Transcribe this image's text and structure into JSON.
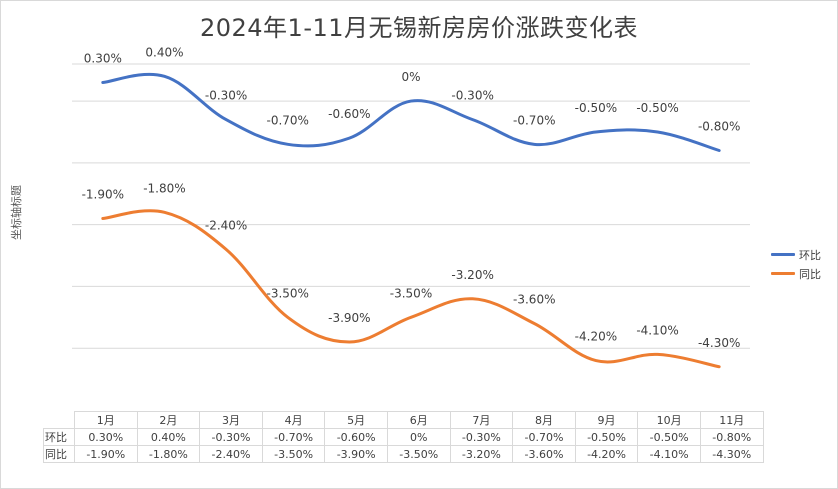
{
  "chart_data": {
    "type": "line",
    "title": "2024年1-11月无锡新房房价涨跌变化表",
    "ylabel": "坐标轴标题",
    "xlabel": "",
    "categories": [
      "1月",
      "2月",
      "3月",
      "4月",
      "5月",
      "6月",
      "7月",
      "8月",
      "9月",
      "10月",
      "11月"
    ],
    "ylim": [
      -5.0,
      0.6
    ],
    "grid": true,
    "legend_position": "right",
    "series": [
      {
        "name": "环比",
        "color": "#4472c4",
        "values": [
          0.3,
          0.4,
          -0.3,
          -0.7,
          -0.6,
          0,
          -0.3,
          -0.7,
          -0.5,
          -0.5,
          -0.8
        ],
        "labels": [
          "0.30%",
          "0.40%",
          "-0.30%",
          "-0.70%",
          "-0.60%",
          "0%",
          "-0.30%",
          "-0.70%",
          "-0.50%",
          "-0.50%",
          "-0.80%"
        ]
      },
      {
        "name": "同比",
        "color": "#ed7d31",
        "values": [
          -1.9,
          -1.8,
          -2.4,
          -3.5,
          -3.9,
          -3.5,
          -3.2,
          -3.6,
          -4.2,
          -4.1,
          -4.3
        ],
        "labels": [
          "-1.90%",
          "-1.80%",
          "-2.40%",
          "-3.50%",
          "-3.90%",
          "-3.50%",
          "-3.20%",
          "-3.60%",
          "-4.20%",
          "-4.10%",
          "-4.30%"
        ]
      }
    ]
  }
}
